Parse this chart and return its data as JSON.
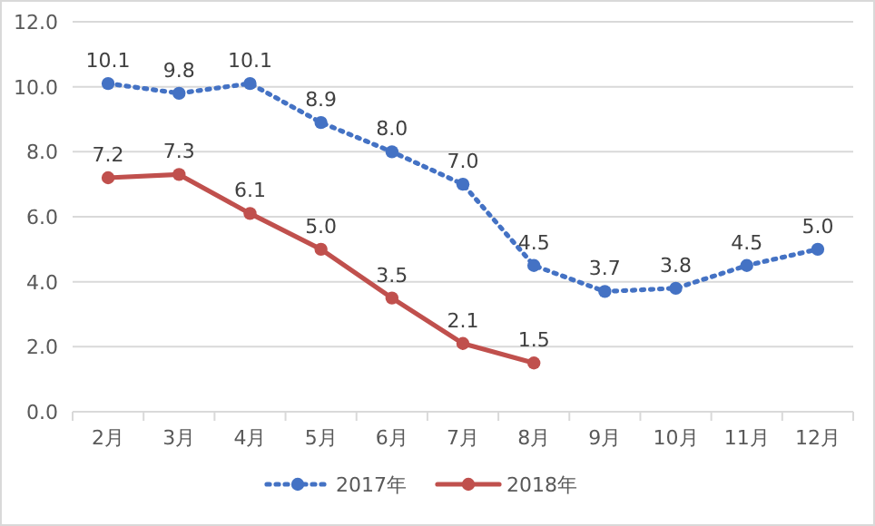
{
  "chart_data": {
    "type": "line",
    "categories": [
      "2月",
      "3月",
      "4月",
      "5月",
      "6月",
      "7月",
      "8月",
      "9月",
      "10月",
      "11月",
      "12月"
    ],
    "series": [
      {
        "name": "2017年",
        "color": "#4472c4",
        "line_style": "dotted",
        "values": [
          10.1,
          9.8,
          10.1,
          8.9,
          8.0,
          7.0,
          4.5,
          3.7,
          3.8,
          4.5,
          5.0
        ],
        "value_labels": [
          "10.1",
          "9.8",
          "10.1",
          "8.9",
          "8.0",
          "7.0",
          "4.5",
          "3.7",
          "3.8",
          "4.5",
          "5.0"
        ]
      },
      {
        "name": "2018年",
        "color": "#c0504d",
        "line_style": "solid",
        "values": [
          7.2,
          7.3,
          6.1,
          5.0,
          3.5,
          2.1,
          1.5,
          null,
          null,
          null,
          null
        ],
        "value_labels": [
          "7.2",
          "7.3",
          "6.1",
          "5.0",
          "3.5",
          "2.1",
          "1.5",
          null,
          null,
          null,
          null
        ]
      }
    ],
    "ylim": [
      0,
      12
    ],
    "yticks": [
      {
        "value": 0,
        "label": "0.0"
      },
      {
        "value": 2,
        "label": "2.0"
      },
      {
        "value": 4,
        "label": "4.0"
      },
      {
        "value": 6,
        "label": "6.0"
      },
      {
        "value": 8,
        "label": "8.0"
      },
      {
        "value": 10,
        "label": "10.0"
      },
      {
        "value": 12,
        "label": "12.0"
      }
    ],
    "grid": "y",
    "legend": "bottom",
    "marker": "circle"
  }
}
